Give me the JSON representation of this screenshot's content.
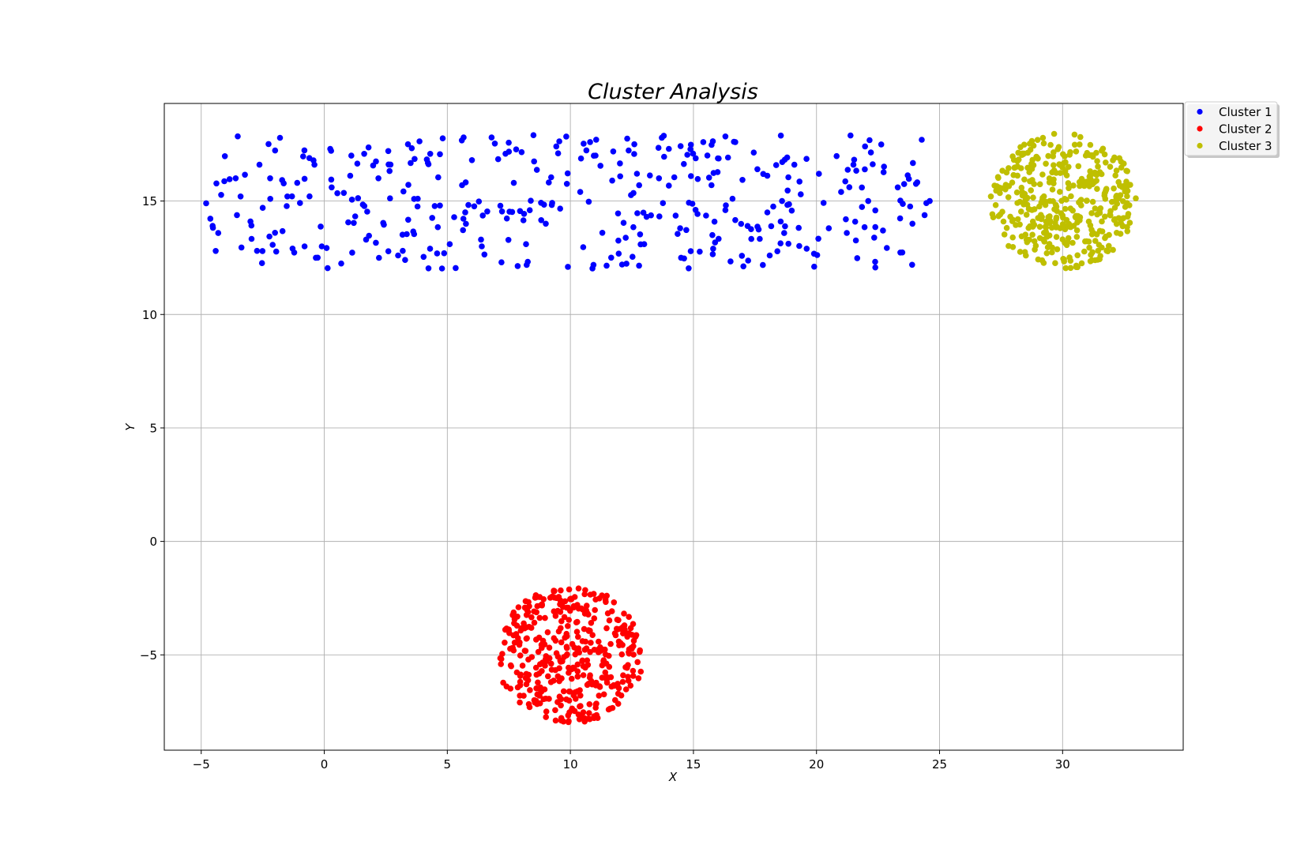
{
  "chart_data": {
    "type": "scatter",
    "title": "Cluster Analysis",
    "xlabel": "X",
    "ylabel": "Y",
    "xlim": [
      -6.5,
      34.9
    ],
    "ylim": [
      -9.2,
      19.3
    ],
    "xticks": [
      -5,
      0,
      5,
      10,
      15,
      20,
      25,
      30
    ],
    "yticks": [
      -5,
      0,
      5,
      10,
      15
    ],
    "xtick_labels": [
      "−5",
      "0",
      "5",
      "10",
      "15",
      "20",
      "25",
      "30"
    ],
    "ytick_labels": [
      "−5",
      "0",
      "5",
      "10",
      "15"
    ],
    "grid": true,
    "legend_position": "outside top-right",
    "series": [
      {
        "name": "Cluster 1",
        "color": "#0000ff",
        "shape": "horizontal band",
        "x_range": [
          -4.8,
          24.6
        ],
        "y_range": [
          12.0,
          17.9
        ],
        "n_points": 400,
        "points": [
          [
            -4.8,
            14.9
          ],
          [
            -3.6,
            16.0
          ],
          [
            -3.4,
            15.2
          ],
          [
            -3.0,
            14.1
          ],
          [
            -2.5,
            14.7
          ],
          [
            -2.2,
            16.0
          ],
          [
            -2.0,
            13.6
          ],
          [
            -1.5,
            15.2
          ],
          [
            -1.1,
            15.8
          ],
          [
            -0.8,
            13.0
          ],
          [
            -0.4,
            16.6
          ],
          [
            -0.1,
            13.0
          ],
          [
            0.3,
            15.6
          ],
          [
            1.1,
            17.0
          ],
          [
            1.7,
            13.3
          ],
          [
            2.2,
            16.0
          ],
          [
            2.6,
            17.2
          ],
          [
            3.0,
            12.6
          ],
          [
            3.4,
            17.5
          ],
          [
            3.8,
            15.1
          ],
          [
            4.3,
            12.9
          ],
          [
            4.7,
            14.8
          ],
          [
            5.1,
            13.1
          ],
          [
            5.6,
            15.7
          ],
          [
            6.0,
            16.8
          ],
          [
            6.4,
            13.0
          ],
          [
            6.8,
            17.8
          ],
          [
            7.2,
            12.3
          ],
          [
            7.7,
            15.8
          ],
          [
            8.2,
            13.1
          ],
          [
            8.5,
            17.9
          ],
          [
            9.0,
            14.0
          ],
          [
            9.5,
            17.1
          ],
          [
            9.9,
            12.1
          ],
          [
            10.4,
            15.4
          ],
          [
            10.8,
            17.6
          ],
          [
            11.3,
            13.6
          ],
          [
            11.7,
            15.9
          ],
          [
            12.1,
            12.2
          ],
          [
            12.6,
            17.5
          ],
          [
            13.0,
            13.1
          ],
          [
            13.6,
            16.0
          ],
          [
            14.0,
            17.3
          ],
          [
            14.5,
            12.5
          ],
          [
            14.9,
            16.1
          ],
          [
            15.4,
            17.6
          ],
          [
            15.8,
            12.9
          ],
          [
            16.3,
            14.6
          ],
          [
            16.7,
            17.6
          ],
          [
            17.2,
            13.9
          ],
          [
            17.6,
            16.4
          ],
          [
            18.1,
            12.6
          ],
          [
            18.6,
            15.0
          ],
          [
            19.1,
            16.6
          ],
          [
            19.6,
            12.9
          ],
          [
            20.1,
            16.2
          ],
          [
            20.5,
            13.8
          ],
          [
            21.0,
            15.4
          ],
          [
            21.5,
            16.6
          ],
          [
            22.1,
            15.0
          ],
          [
            22.7,
            13.7
          ],
          [
            23.3,
            15.6
          ],
          [
            23.9,
            14.0
          ],
          [
            24.6,
            15.0
          ]
        ]
      },
      {
        "name": "Cluster 2",
        "color": "#ff0000",
        "shape": "disc",
        "center": [
          10.0,
          -5.0
        ],
        "radius": 3.0,
        "n_points": 400
      },
      {
        "name": "Cluster 3",
        "color": "#bfbf00",
        "shape": "disc",
        "center": [
          30.0,
          15.0
        ],
        "radius": 3.0,
        "n_points": 400
      }
    ]
  },
  "legend": {
    "items": [
      {
        "label": "Cluster 1",
        "color": "#0000ff"
      },
      {
        "label": "Cluster 2",
        "color": "#ff0000"
      },
      {
        "label": "Cluster 3",
        "color": "#bfbf00"
      }
    ]
  }
}
